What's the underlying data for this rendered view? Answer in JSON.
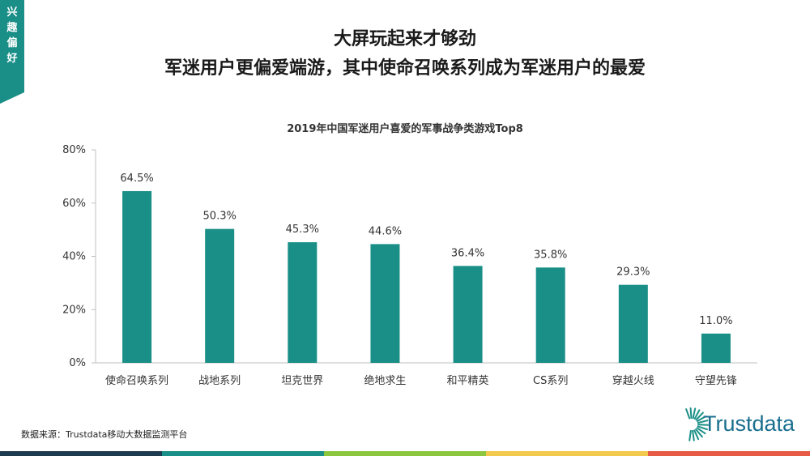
{
  "side_tab": [
    "兴",
    "趣",
    "偏",
    "好"
  ],
  "headline": {
    "line1": "大屏玩起来才够劲",
    "line2": "军迷用户更偏爱端游，其中使命召唤系列成为军迷用户的最爱"
  },
  "source": "数据来源：Trustdata移动大数据监测平台",
  "logo": {
    "text": "Trustdata"
  },
  "colors": {
    "accent": "#1a8f87",
    "bottom_strip": [
      "#1e3a4f",
      "#1a8f87",
      "#8cc63f",
      "#f2c94c",
      "#e65a46"
    ]
  },
  "chart_data": {
    "type": "bar",
    "title": "2019年中国军迷用户喜爱的军事战争类游戏Top8",
    "categories": [
      "使命召唤系列",
      "战地系列",
      "坦克世界",
      "绝地求生",
      "和平精英",
      "CS系列",
      "穿越火线",
      "守望先锋"
    ],
    "values": [
      64.5,
      50.3,
      45.3,
      44.6,
      36.4,
      35.8,
      29.3,
      11.0
    ],
    "value_labels": [
      "64.5%",
      "50.3%",
      "45.3%",
      "44.6%",
      "36.4%",
      "35.8%",
      "29.3%",
      "11.0%"
    ],
    "ylim": [
      0,
      80
    ],
    "yticks": [
      0,
      20,
      40,
      60,
      80
    ],
    "ytick_labels": [
      "0%",
      "20%",
      "40%",
      "60%",
      "80%"
    ],
    "xlabel": "",
    "ylabel": "",
    "bar_color": "#1a8f87",
    "grid": false,
    "legend": "none"
  }
}
